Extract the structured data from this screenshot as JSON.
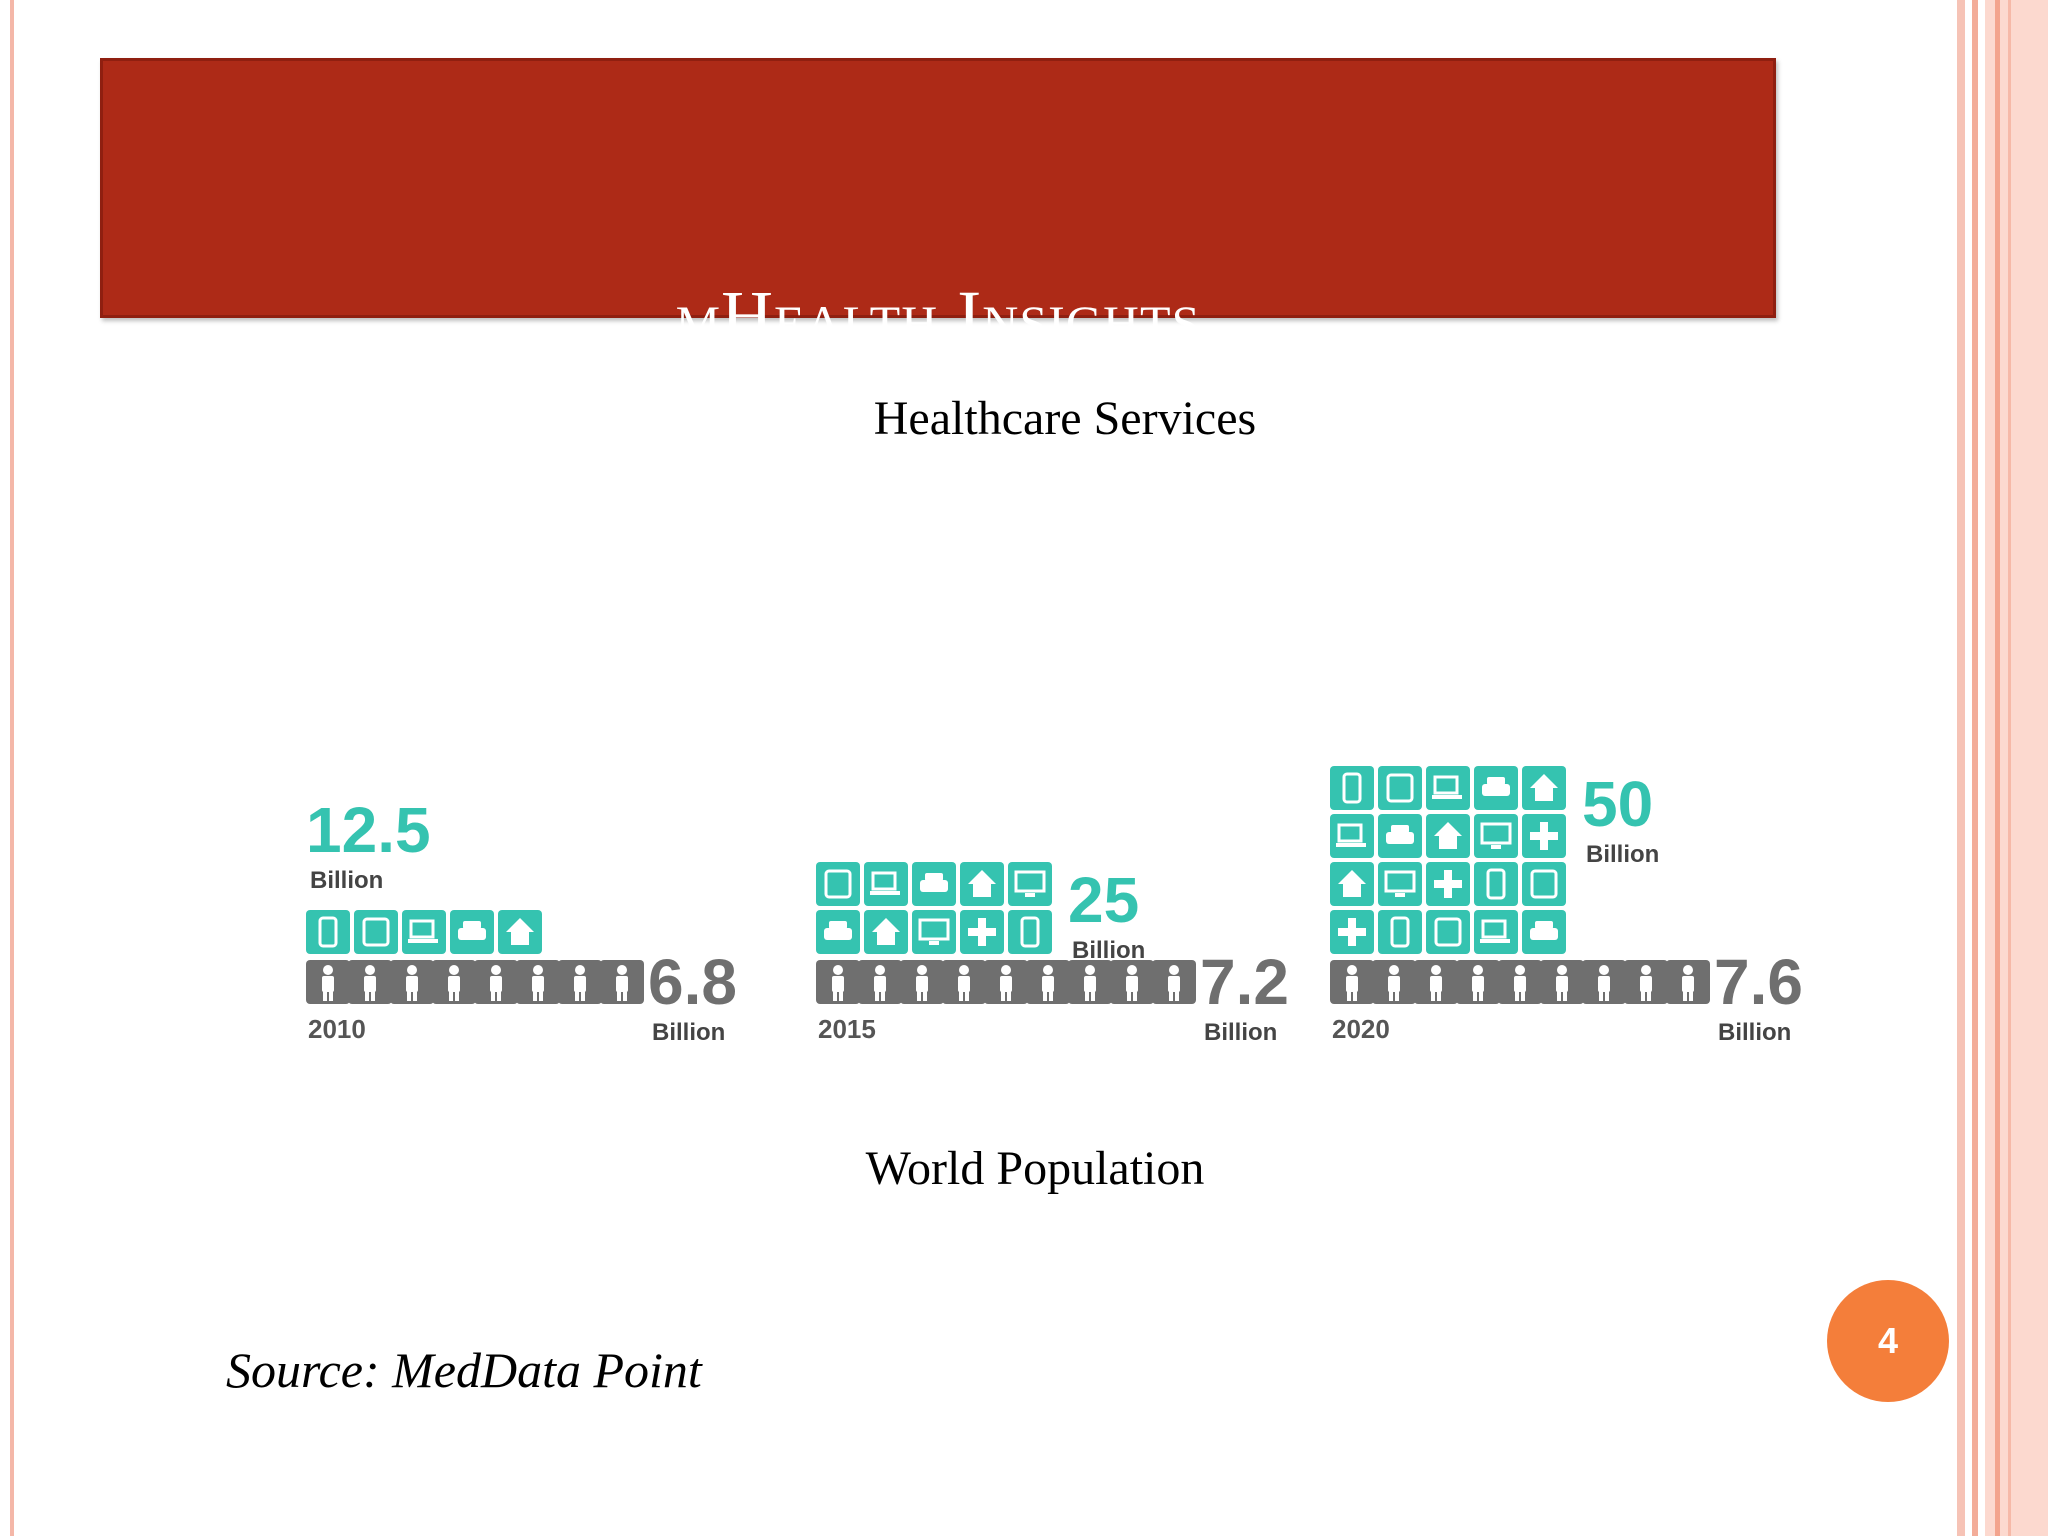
{
  "slide": {
    "title": "mHealth Insights",
    "label_top": "Healthcare Services",
    "label_bottom": "World Population",
    "source": "Source: MedData Point",
    "page_number": "4"
  },
  "colors": {
    "title_bar": "#ad2a17",
    "device_tile": "#35c3b0",
    "person_tile": "#6f6f6f",
    "badge": "#f47e3a"
  },
  "chart_data": {
    "type": "bar",
    "categories": [
      "2010",
      "2015",
      "2020"
    ],
    "series": [
      {
        "name": "Billion",
        "values": [
          12.5,
          25,
          50
        ]
      },
      {
        "name": "Billion",
        "values": [
          6.8,
          7.2,
          7.6
        ]
      }
    ],
    "value_labels_devices": [
      "12.5",
      "25",
      "50"
    ],
    "value_labels_population": [
      "6.8",
      "7.2",
      "7.6"
    ],
    "unit_label": "Billion",
    "icon_types": [
      "phone-icon",
      "tablet-icon",
      "laptop-icon",
      "car-icon",
      "home-icon",
      "monitor-icon",
      "plus-icon",
      "person-icon"
    ]
  }
}
